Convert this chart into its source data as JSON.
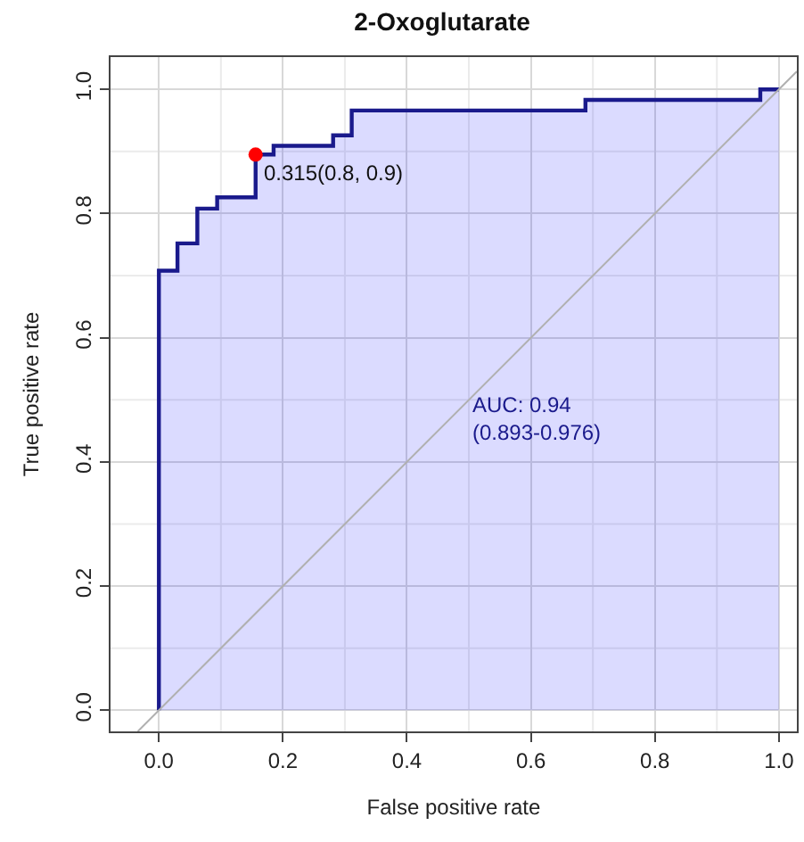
{
  "chart_data": {
    "type": "area",
    "title": "2-Oxoglutarate",
    "xlabel": "False positive rate",
    "ylabel": "True positive rate",
    "xlim": [
      -0.078,
      1.029
    ],
    "ylim": [
      -0.034,
      1.052
    ],
    "xticks": [
      {
        "value": 0,
        "label": "0.0"
      },
      0.2,
      0.4,
      0.6,
      0.8,
      {
        "value": 1,
        "label": "1.0"
      }
    ],
    "yticks": [
      {
        "value": 0,
        "label": "0.0"
      },
      0.2,
      0.4,
      0.6,
      0.8,
      {
        "value": 1,
        "label": "1.0"
      }
    ],
    "grid": true,
    "series": [
      {
        "color": "#1a1a8c",
        "x": [
          0,
          0,
          0.03,
          0.03,
          0.062,
          0.062,
          0.094,
          0.094,
          0.156,
          0.156,
          0.185,
          0.185,
          0.281,
          0.281,
          0.311,
          0.311,
          0.688,
          0.688,
          0.97,
          0.97,
          1.0
        ],
        "values": [
          0,
          0.708,
          0.708,
          0.752,
          0.752,
          0.808,
          0.808,
          0.826,
          0.826,
          0.895,
          0.895,
          0.909,
          0.909,
          0.926,
          0.926,
          0.966,
          0.966,
          0.983,
          0.983,
          1.0,
          1.0
        ]
      },
      {
        "type": "line",
        "color": "#b0b0b0",
        "x": [
          -0.034,
          1.029
        ],
        "values": [
          -0.034,
          1.029
        ]
      },
      {
        "type": "scatter",
        "color": "#ff0000",
        "marker": "circle",
        "x": [
          0.156
        ],
        "values": [
          0.895
        ]
      }
    ],
    "annotations": [
      {
        "text": "0.315(0.8, 0.9)",
        "x": 0.156,
        "y": 0.895
      },
      "AUC: 0.94\n(0.893-0.976)"
    ]
  }
}
